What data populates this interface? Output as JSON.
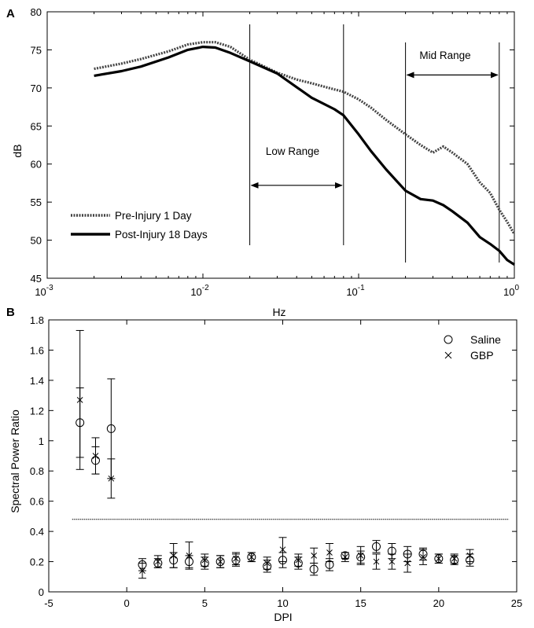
{
  "chart_data": [
    {
      "panel_label": "A",
      "type": "line",
      "xscale": "log",
      "xlim": [
        0.001,
        1
      ],
      "ylim": [
        45,
        80
      ],
      "xlabel": "Hz",
      "ylabel": "dB",
      "xticks": [
        {
          "value": 0.001,
          "base": "10",
          "exp": "-3"
        },
        {
          "value": 0.01,
          "base": "10",
          "exp": "-2"
        },
        {
          "value": 0.1,
          "base": "10",
          "exp": "-1"
        },
        {
          "value": 1,
          "base": "10",
          "exp": "0"
        }
      ],
      "yticks": [
        "45",
        "50",
        "55",
        "60",
        "65",
        "70",
        "75",
        "80"
      ],
      "legend": {
        "position": "bottom-left"
      },
      "series": [
        {
          "name": "Pre-Injury 1 Day",
          "style": "dotted",
          "x": [
            0.002,
            0.003,
            0.004,
            0.006,
            0.008,
            0.01,
            0.012,
            0.015,
            0.02,
            0.03,
            0.04,
            0.05,
            0.07,
            0.08,
            0.1,
            0.12,
            0.15,
            0.2,
            0.25,
            0.3,
            0.35,
            0.4,
            0.5,
            0.6,
            0.7,
            0.8,
            0.9,
            1.0
          ],
          "y": [
            72.5,
            73.2,
            73.8,
            74.8,
            75.7,
            76.0,
            76.0,
            75.4,
            73.7,
            72.0,
            71.1,
            70.6,
            69.8,
            69.5,
            68.5,
            67.4,
            65.8,
            63.9,
            62.5,
            61.5,
            62.3,
            61.5,
            60.0,
            57.6,
            56.2,
            54.0,
            52.4,
            50.8
          ]
        },
        {
          "name": "Post-Injury 18 Days",
          "style": "solid",
          "x": [
            0.002,
            0.003,
            0.004,
            0.006,
            0.008,
            0.01,
            0.012,
            0.015,
            0.02,
            0.03,
            0.04,
            0.05,
            0.07,
            0.08,
            0.1,
            0.12,
            0.15,
            0.2,
            0.25,
            0.3,
            0.35,
            0.4,
            0.5,
            0.6,
            0.7,
            0.8,
            0.9,
            1.0
          ],
          "y": [
            71.6,
            72.2,
            72.8,
            74.0,
            75.0,
            75.4,
            75.3,
            74.6,
            73.5,
            71.9,
            70.1,
            68.7,
            67.2,
            66.4,
            63.9,
            61.7,
            59.3,
            56.5,
            55.4,
            55.2,
            54.6,
            53.8,
            52.3,
            50.4,
            49.5,
            48.6,
            47.4,
            46.8
          ]
        }
      ],
      "vlines": [
        0.02,
        0.08,
        0.2,
        0.8
      ],
      "annotations": [
        {
          "text": "Low Range",
          "x": 0.04,
          "y": 61
        },
        {
          "text": "Mid Range",
          "x": 0.4,
          "y": 77
        },
        {
          "text": "Mid Range",
          "x": 0.4,
          "y": 77
        }
      ],
      "range_arrows": [
        {
          "label": "Low Range",
          "x_from": 0.02,
          "x_to": 0.08,
          "y": 57.2
        },
        {
          "label": "Mid Range",
          "x_from": 0.2,
          "x_to": 0.8,
          "y": 71.7
        }
      ]
    },
    {
      "panel_label": "B",
      "type": "scatter",
      "xlabel": "DPI",
      "ylabel": "Spectral Power Ratio",
      "xlim": [
        -5,
        25
      ],
      "ylim": [
        0,
        1.8
      ],
      "xticks": [
        "-5",
        "0",
        "5",
        "10",
        "15",
        "20",
        "25"
      ],
      "yticks": [
        "0",
        "0.2",
        "0.4",
        "0.6",
        "0.8",
        "1",
        "1.2",
        "1.4",
        "1.6",
        "1.8"
      ],
      "legend": {
        "position": "top-right"
      },
      "reference_line": {
        "y": 0.48,
        "x_from": -3.5,
        "x_to": 24.5,
        "style": "dotted"
      },
      "series": [
        {
          "name": "Saline",
          "marker": "circle",
          "x": [
            -3,
            -2,
            -1,
            1,
            2,
            3,
            4,
            5,
            6,
            7,
            8,
            9,
            10,
            11,
            12,
            13,
            14,
            15,
            16,
            17,
            18,
            19,
            20,
            21,
            22
          ],
          "y": [
            1.12,
            0.87,
            1.08,
            0.18,
            0.19,
            0.21,
            0.2,
            0.19,
            0.2,
            0.21,
            0.23,
            0.17,
            0.21,
            0.19,
            0.15,
            0.18,
            0.24,
            0.23,
            0.3,
            0.27,
            0.25,
            0.25,
            0.22,
            0.21,
            0.21
          ],
          "err": [
            0.23,
            0.09,
            0.33,
            0.04,
            0.03,
            0.05,
            0.04,
            0.04,
            0.04,
            0.04,
            0.03,
            0.04,
            0.05,
            0.04,
            0.04,
            0.04,
            0.02,
            0.04,
            0.04,
            0.05,
            0.05,
            0.04,
            0.03,
            0.03,
            0.04
          ]
        },
        {
          "name": "GBP",
          "marker": "x",
          "x": [
            -3,
            -2,
            -1,
            1,
            2,
            3,
            4,
            5,
            6,
            7,
            8,
            9,
            10,
            11,
            12,
            13,
            14,
            15,
            16,
            17,
            18,
            19,
            20,
            21,
            22
          ],
          "y": [
            1.27,
            0.9,
            0.75,
            0.14,
            0.2,
            0.24,
            0.24,
            0.21,
            0.2,
            0.22,
            0.23,
            0.19,
            0.28,
            0.21,
            0.24,
            0.26,
            0.23,
            0.24,
            0.2,
            0.2,
            0.19,
            0.23,
            0.22,
            0.22,
            0.24
          ],
          "err": [
            0.46,
            0.12,
            0.13,
            0.05,
            0.04,
            0.08,
            0.09,
            0.04,
            0.04,
            0.04,
            0.03,
            0.04,
            0.08,
            0.04,
            0.05,
            0.06,
            0.03,
            0.06,
            0.05,
            0.05,
            0.06,
            0.05,
            0.03,
            0.03,
            0.04
          ]
        }
      ]
    }
  ]
}
